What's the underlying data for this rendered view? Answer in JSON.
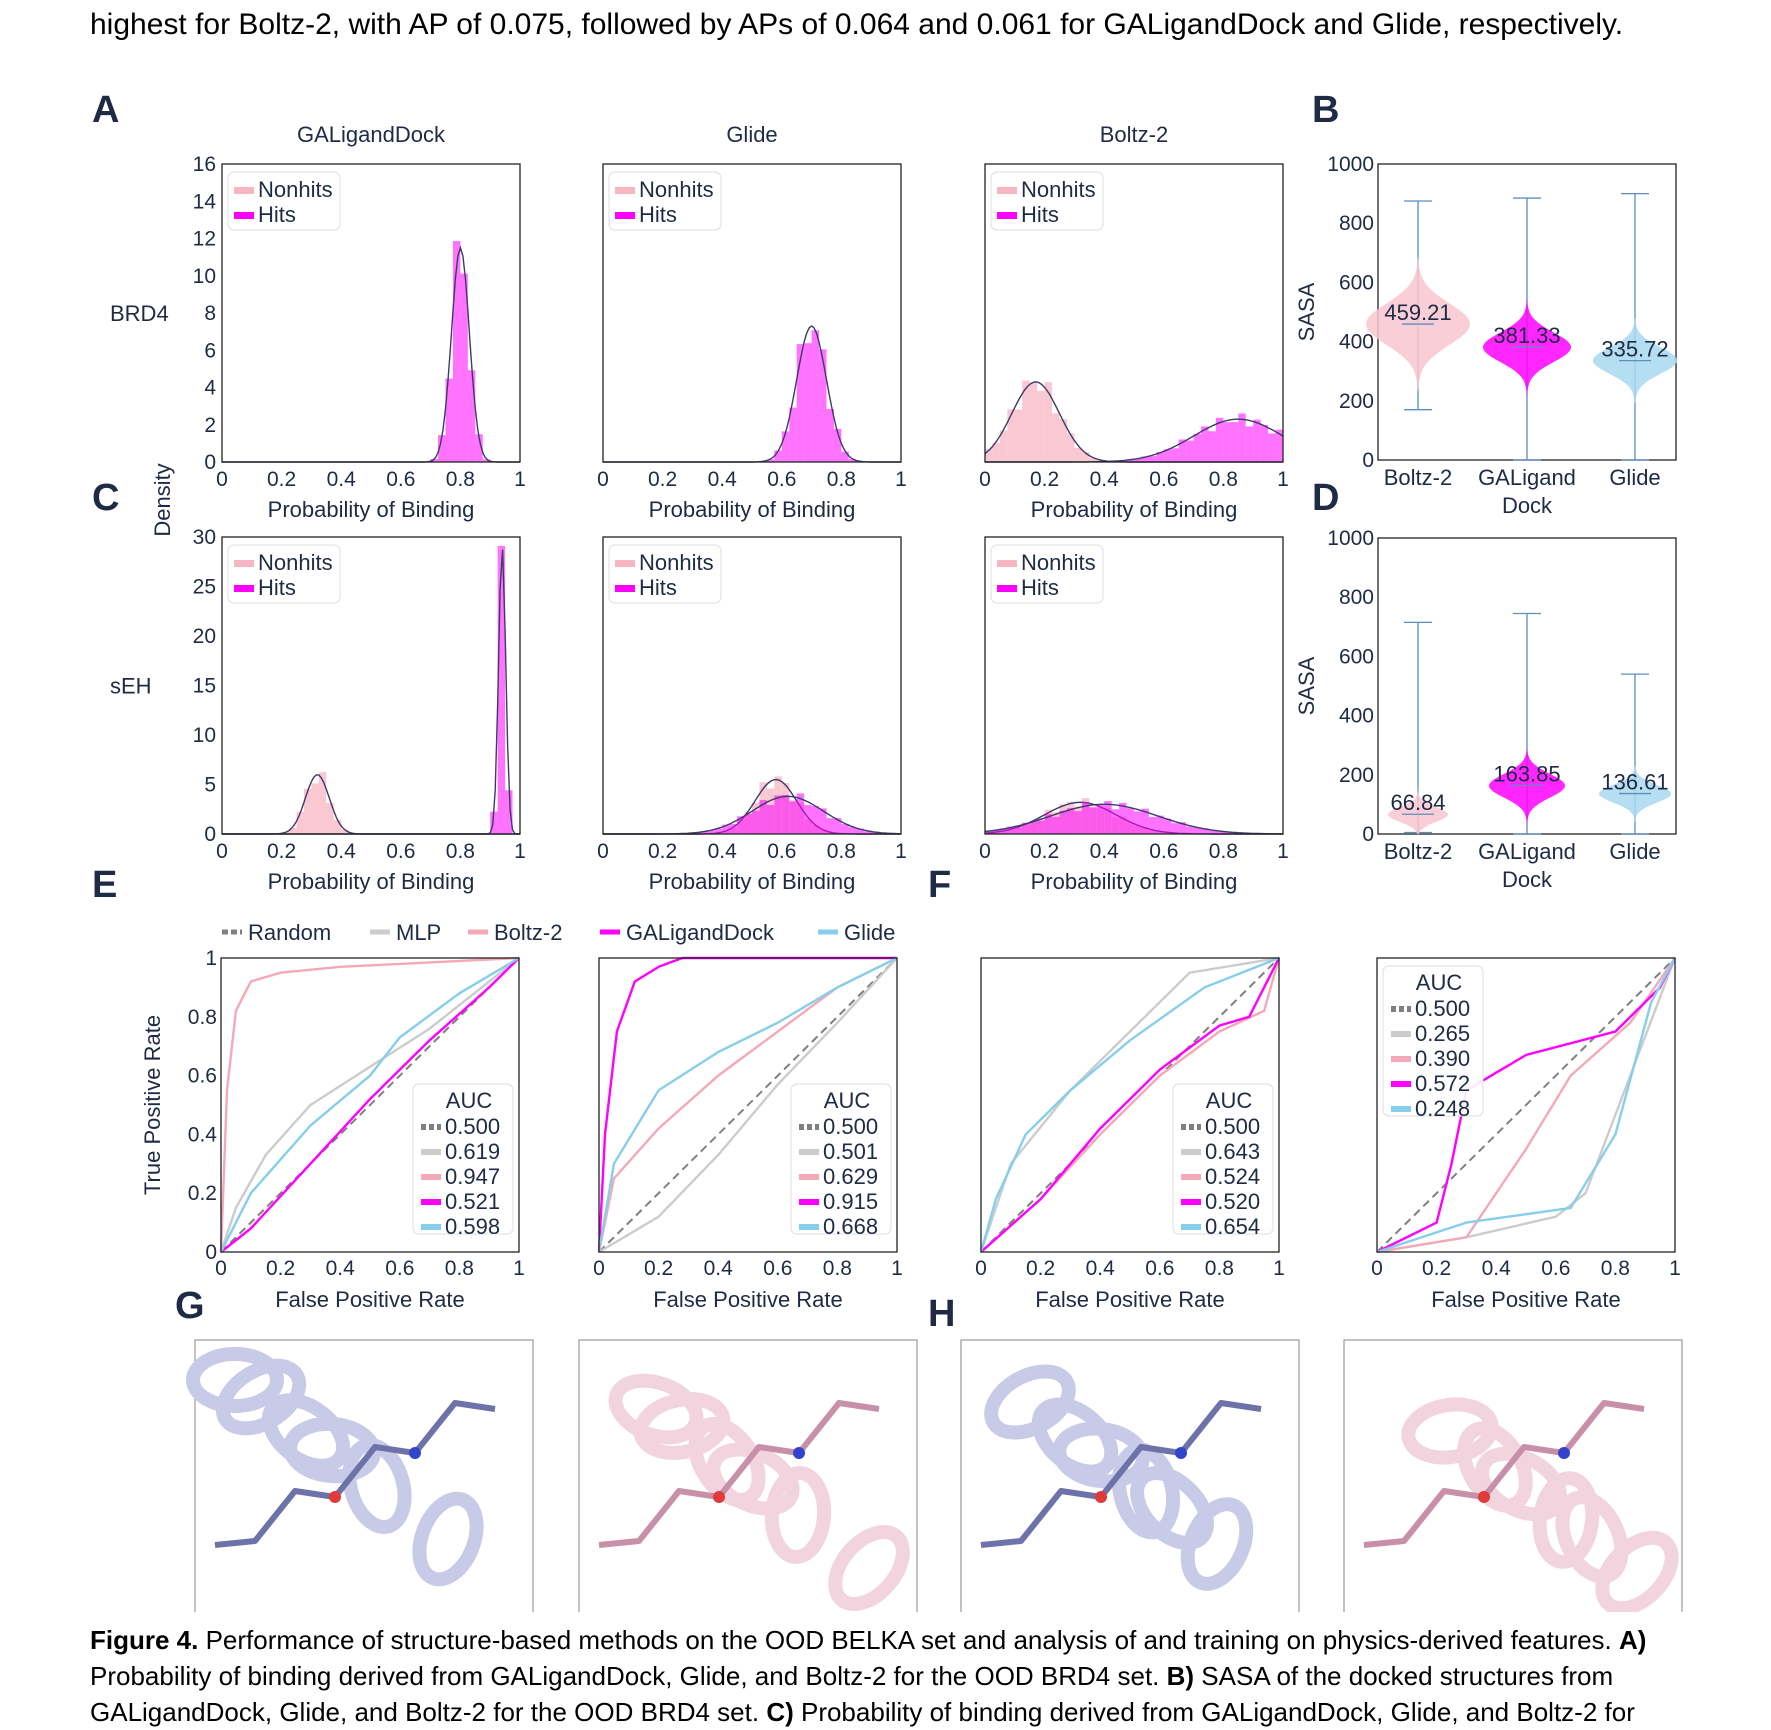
{
  "intro": "highest for Boltz-2, with AP of 0.075, followed by APs of 0.064 and 0.061 for GALigandDock and Glide, respectively.",
  "colors": {
    "nonhits": "#f7b6c2",
    "hits": "#ff00ff",
    "random": "#808080",
    "mlp": "#cccccc",
    "boltz": "#f4a9b8",
    "galigand": "#ff00ff",
    "glide": "#87ceeb",
    "violin_glide": "#a8d8f0",
    "violin_boltz": "#f9c6d0",
    "protein_lav": "#c8cbe8",
    "protein_pink": "#f2d4de"
  },
  "panels": {
    "A": "A",
    "B": "B",
    "C": "C",
    "D": "D",
    "E": "E",
    "F": "F",
    "G": "G",
    "H": "H"
  },
  "hist": {
    "methods": [
      "GALigandDock",
      "Glide",
      "Boltz-2"
    ],
    "row_labels": [
      "BRD4",
      "sEH"
    ],
    "density_label": "Density",
    "xlabel": "Probability of Binding",
    "legend": [
      "Nonhits",
      "Hits"
    ],
    "xticks": [
      "0",
      "0.2",
      "0.4",
      "0.6",
      "0.8",
      "1"
    ],
    "yticks_brd4": [
      "0",
      "2",
      "4",
      "6",
      "8",
      "10",
      "12",
      "14",
      "16"
    ],
    "yticks_seh": [
      "0",
      "5",
      "10",
      "15",
      "20",
      "25",
      "30"
    ]
  },
  "violin": {
    "ylabel": "SASA",
    "yticks": [
      "0",
      "200",
      "400",
      "600",
      "800",
      "1000"
    ],
    "categories": [
      [
        "Boltz-2"
      ],
      [
        "GALigand",
        "Dock"
      ],
      [
        "Glide"
      ]
    ],
    "B_medians": [
      "459.21",
      "381.33",
      "335.72"
    ],
    "D_medians": [
      "66.84",
      "163.85",
      "136.61"
    ]
  },
  "roc": {
    "xlabel": "False Positive Rate",
    "ylabel": "True Positive Rate",
    "legend_title": "AUC",
    "top_legend": [
      "Random",
      "MLP",
      "Boltz-2",
      "GALigandDock",
      "Glide"
    ],
    "xticks": [
      "0",
      "0.2",
      "0.4",
      "0.6",
      "0.8",
      "1"
    ],
    "yticks": [
      "0",
      "0.2",
      "0.4",
      "0.6",
      "0.8",
      "1"
    ],
    "auc_sets": [
      [
        "0.500",
        "0.619",
        "0.947",
        "0.521",
        "0.598"
      ],
      [
        "0.500",
        "0.501",
        "0.629",
        "0.915",
        "0.668"
      ],
      [
        "0.500",
        "0.643",
        "0.524",
        "0.520",
        "0.654"
      ],
      [
        "0.500",
        "0.265",
        "0.390",
        "0.572",
        "0.248"
      ]
    ]
  },
  "caption": {
    "fig_label": "Figure 4.",
    "text1": " Performance of structure-based methods on the OOD BELKA set and analysis of and training on physics-derived features. ",
    "labA": "A)",
    "text2": " Probability of binding derived from GALigandDock, Glide, and Boltz-2 for the OOD BRD4 set. ",
    "labB": "B)",
    "text3": " SASA of the docked structures from GALigandDock, Glide, and Boltz-2 for the OOD BRD4 set. ",
    "labC": "C)",
    "text4": " Probability of binding derived from GALigandDock, Glide, and Boltz-2 for"
  },
  "chart_data": [
    {
      "type": "bar",
      "panel": "A",
      "title": "GALigandDock",
      "row": "BRD4",
      "xlabel": "Probability of Binding",
      "ylabel": "Density",
      "ylim": [
        0,
        16
      ],
      "series": [
        {
          "name": "Hits",
          "peak_x": 0.8,
          "peak_density": 11.5
        }
      ]
    },
    {
      "type": "bar",
      "panel": "A",
      "title": "Glide",
      "row": "BRD4",
      "xlabel": "Probability of Binding",
      "ylim": [
        0,
        16
      ],
      "series": [
        {
          "name": "Hits",
          "peak_x": 0.7,
          "peak_density": 7.3
        }
      ]
    },
    {
      "type": "bar",
      "panel": "A",
      "title": "Boltz-2",
      "row": "BRD4",
      "xlabel": "Probability of Binding",
      "ylim": [
        0,
        16
      ],
      "series": [
        {
          "name": "Nonhits",
          "peak_x": 0.17,
          "peak_density": 4.3
        },
        {
          "name": "Hits",
          "peak_x": 0.85,
          "peak_density": 2.3
        }
      ]
    },
    {
      "type": "bar",
      "panel": "C",
      "title": "GALigandDock",
      "row": "sEH",
      "xlabel": "Probability of Binding",
      "ylim": [
        0,
        30
      ],
      "series": [
        {
          "name": "Nonhits",
          "peak_x": 0.32,
          "peak_density": 6
        },
        {
          "name": "Hits",
          "peak_x": 0.94,
          "peak_density": 29
        }
      ]
    },
    {
      "type": "bar",
      "panel": "C",
      "title": "Glide",
      "row": "sEH",
      "xlabel": "Probability of Binding",
      "ylim": [
        0,
        30
      ],
      "series": [
        {
          "name": "Nonhits",
          "peak_x": 0.58,
          "peak_density": 5.5
        },
        {
          "name": "Hits",
          "peak_x": 0.62,
          "peak_density": 3.8
        }
      ]
    },
    {
      "type": "bar",
      "panel": "C",
      "title": "Boltz-2",
      "row": "sEH",
      "xlabel": "Probability of Binding",
      "ylim": [
        0,
        30
      ],
      "series": [
        {
          "name": "Nonhits",
          "peak_x": 0.32,
          "peak_density": 3.2
        },
        {
          "name": "Hits",
          "peak_x": 0.4,
          "peak_density": 3
        }
      ]
    },
    {
      "type": "violin",
      "panel": "B",
      "ylabel": "SASA",
      "ylim": [
        0,
        1000
      ],
      "categories": [
        "Boltz-2",
        "GALigand Dock",
        "Glide"
      ],
      "medians": [
        459.21,
        381.33,
        335.72
      ],
      "mins": [
        170,
        0,
        0
      ],
      "maxs": [
        875,
        885,
        900
      ]
    },
    {
      "type": "violin",
      "panel": "D",
      "ylabel": "SASA",
      "ylim": [
        0,
        1000
      ],
      "categories": [
        "Boltz-2",
        "GALigand Dock",
        "Glide"
      ],
      "medians": [
        66.84,
        163.85,
        136.61
      ],
      "mins": [
        5,
        0,
        0
      ],
      "maxs": [
        715,
        745,
        540
      ]
    },
    {
      "type": "line",
      "panel": "E",
      "xlabel": "False Positive Rate",
      "ylabel": "True Positive Rate",
      "xlim": [
        0,
        1
      ],
      "ylim": [
        0,
        1
      ],
      "series": [
        {
          "name": "Random",
          "auc": 0.5,
          "x": [
            0,
            1
          ],
          "y": [
            0,
            1
          ]
        },
        {
          "name": "MLP",
          "auc": 0.619,
          "x": [
            0,
            0.05,
            0.15,
            0.3,
            0.5,
            0.7,
            0.9,
            1
          ],
          "y": [
            0,
            0.15,
            0.33,
            0.5,
            0.63,
            0.76,
            0.92,
            1
          ]
        },
        {
          "name": "Boltz-2",
          "auc": 0.947,
          "x": [
            0,
            0.02,
            0.05,
            0.1,
            0.2,
            0.4,
            0.6,
            0.8,
            1
          ],
          "y": [
            0,
            0.55,
            0.82,
            0.92,
            0.95,
            0.97,
            0.98,
            0.99,
            1
          ]
        },
        {
          "name": "GALigandDock",
          "auc": 0.521,
          "x": [
            0,
            0.1,
            0.3,
            0.5,
            0.7,
            0.9,
            1
          ],
          "y": [
            0,
            0.08,
            0.3,
            0.52,
            0.72,
            0.9,
            1
          ]
        },
        {
          "name": "Glide",
          "auc": 0.598,
          "x": [
            0,
            0.1,
            0.3,
            0.5,
            0.6,
            0.8,
            1
          ],
          "y": [
            0,
            0.2,
            0.43,
            0.6,
            0.73,
            0.88,
            1
          ]
        }
      ]
    },
    {
      "type": "line",
      "panel": "E",
      "xlabel": "False Positive Rate",
      "xlim": [
        0,
        1
      ],
      "ylim": [
        0,
        1
      ],
      "series": [
        {
          "name": "Random",
          "auc": 0.5,
          "x": [
            0,
            1
          ],
          "y": [
            0,
            1
          ]
        },
        {
          "name": "MLP",
          "auc": 0.501,
          "x": [
            0,
            0.2,
            0.4,
            0.6,
            0.8,
            1
          ],
          "y": [
            0,
            0.12,
            0.33,
            0.57,
            0.78,
            1
          ]
        },
        {
          "name": "Boltz-2",
          "auc": 0.629,
          "x": [
            0,
            0.05,
            0.2,
            0.4,
            0.6,
            0.8,
            1
          ],
          "y": [
            0,
            0.25,
            0.42,
            0.6,
            0.75,
            0.9,
            1
          ]
        },
        {
          "name": "GALigandDock",
          "auc": 0.915,
          "x": [
            0,
            0.02,
            0.06,
            0.12,
            0.2,
            0.28,
            1
          ],
          "y": [
            0,
            0.4,
            0.75,
            0.92,
            0.97,
            1,
            1
          ]
        },
        {
          "name": "Glide",
          "auc": 0.668,
          "x": [
            0,
            0.05,
            0.2,
            0.4,
            0.6,
            0.8,
            1
          ],
          "y": [
            0,
            0.3,
            0.55,
            0.68,
            0.78,
            0.9,
            1
          ]
        }
      ]
    },
    {
      "type": "line",
      "panel": "F",
      "xlabel": "False Positive Rate",
      "xlim": [
        0,
        1
      ],
      "ylim": [
        0,
        1
      ],
      "series": [
        {
          "name": "Random",
          "auc": 0.5,
          "x": [
            0,
            1
          ],
          "y": [
            0,
            1
          ]
        },
        {
          "name": "MLP",
          "auc": 0.643,
          "x": [
            0,
            0.1,
            0.3,
            0.5,
            0.7,
            1
          ],
          "y": [
            0,
            0.3,
            0.55,
            0.75,
            0.95,
            1
          ]
        },
        {
          "name": "Boltz-2",
          "auc": 0.524,
          "x": [
            0,
            0.2,
            0.4,
            0.6,
            0.8,
            0.95,
            1
          ],
          "y": [
            0,
            0.18,
            0.4,
            0.6,
            0.75,
            0.82,
            1
          ]
        },
        {
          "name": "GALigandDock",
          "auc": 0.52,
          "x": [
            0,
            0.2,
            0.4,
            0.6,
            0.8,
            0.9,
            1
          ],
          "y": [
            0,
            0.18,
            0.42,
            0.62,
            0.77,
            0.8,
            1
          ]
        },
        {
          "name": "Glide",
          "auc": 0.654,
          "x": [
            0,
            0.05,
            0.15,
            0.3,
            0.5,
            0.75,
            1
          ],
          "y": [
            0,
            0.18,
            0.4,
            0.55,
            0.72,
            0.9,
            1
          ]
        }
      ]
    },
    {
      "type": "line",
      "panel": "F",
      "xlabel": "False Positive Rate",
      "xlim": [
        0,
        1
      ],
      "ylim": [
        0,
        1
      ],
      "series": [
        {
          "name": "Random",
          "auc": 0.5,
          "x": [
            0,
            1
          ],
          "y": [
            0,
            1
          ]
        },
        {
          "name": "MLP",
          "auc": 0.265,
          "x": [
            0,
            0.3,
            0.6,
            0.7,
            0.85,
            1
          ],
          "y": [
            0,
            0.05,
            0.12,
            0.2,
            0.6,
            1
          ]
        },
        {
          "name": "Boltz-2",
          "auc": 0.39,
          "x": [
            0,
            0.3,
            0.5,
            0.65,
            0.85,
            1
          ],
          "y": [
            0,
            0.05,
            0.35,
            0.6,
            0.78,
            1
          ]
        },
        {
          "name": "GALigandDock",
          "auc": 0.572,
          "x": [
            0,
            0.2,
            0.25,
            0.3,
            0.5,
            0.8,
            0.95,
            1
          ],
          "y": [
            0,
            0.1,
            0.3,
            0.55,
            0.67,
            0.75,
            0.9,
            1
          ]
        },
        {
          "name": "Glide",
          "auc": 0.248,
          "x": [
            0,
            0.3,
            0.65,
            0.8,
            0.92,
            1
          ],
          "y": [
            0,
            0.1,
            0.15,
            0.4,
            0.85,
            1
          ]
        }
      ]
    }
  ]
}
